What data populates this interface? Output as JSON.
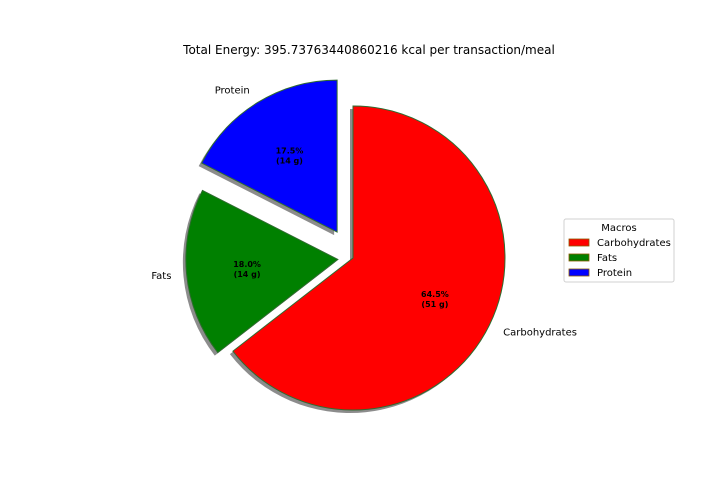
{
  "chart_data": {
    "type": "pie",
    "title": "Total Energy: 395.73763440860216 kcal per transaction/meal",
    "slices": [
      {
        "label": "Carbohydrates",
        "percent": 64.5,
        "grams": 51,
        "pct_text": "64.5%",
        "grams_text": "(51 g)",
        "color": "#ff0000",
        "explode": 0.0
      },
      {
        "label": "Fats",
        "percent": 18.0,
        "grams": 14,
        "pct_text": "18.0%",
        "grams_text": "(14 g)",
        "color": "#008000",
        "explode": 0.1
      },
      {
        "label": "Protein",
        "percent": 17.5,
        "grams": 14,
        "pct_text": "17.5%",
        "grams_text": "(14 g)",
        "color": "#0000ff",
        "explode": 0.2
      }
    ],
    "start_angle_deg": 90,
    "counterclock": false,
    "shadow": true,
    "legend": {
      "title": "Macros",
      "placement": "center-right",
      "entries": [
        "Carbohydrates",
        "Fats",
        "Protein"
      ]
    }
  }
}
